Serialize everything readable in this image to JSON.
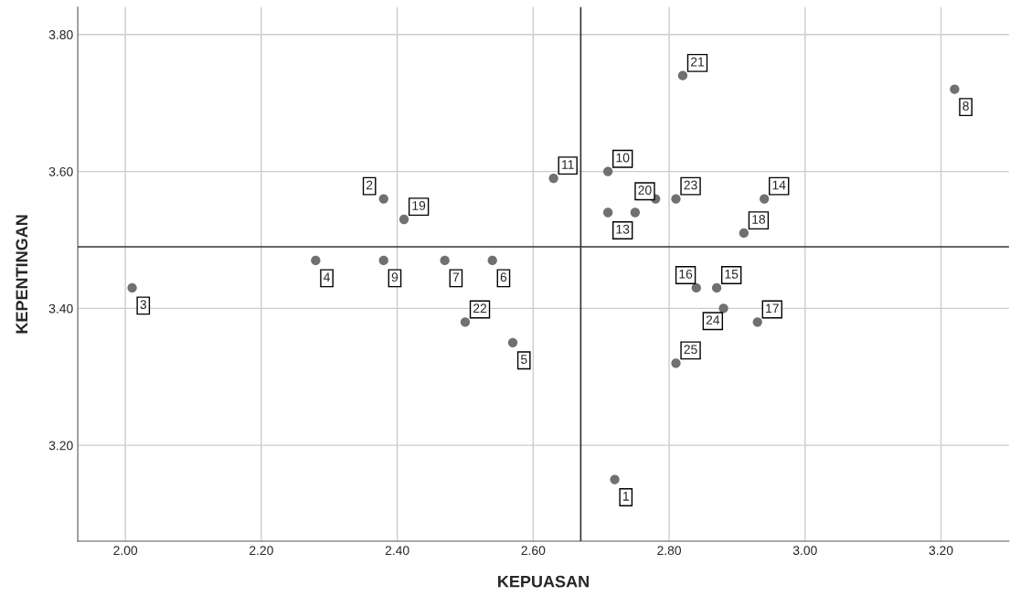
{
  "chart_data": {
    "type": "scatter",
    "xlabel": "KEPUASAN",
    "ylabel": "KEPENTINGAN",
    "xlim": [
      1.93,
      3.3
    ],
    "ylim": [
      3.06,
      3.84
    ],
    "xticks": [
      {
        "value": 2.0,
        "label": "2.00"
      },
      {
        "value": 2.2,
        "label": "2.20"
      },
      {
        "value": 2.4,
        "label": "2.40"
      },
      {
        "value": 2.6,
        "label": "2.60"
      },
      {
        "value": 2.8,
        "label": "2.80"
      },
      {
        "value": 3.0,
        "label": "3.00"
      },
      {
        "value": 3.2,
        "label": "3.20"
      }
    ],
    "yticks": [
      {
        "value": 3.2,
        "label": "3.20"
      },
      {
        "value": 3.4,
        "label": "3.40"
      },
      {
        "value": 3.6,
        "label": "3.60"
      },
      {
        "value": 3.8,
        "label": "3.80"
      }
    ],
    "grid": true,
    "marker": "circle",
    "ref_lines": [
      {
        "axis": "x",
        "value": 2.67,
        "color": "#333333"
      },
      {
        "axis": "y",
        "value": 3.49,
        "color": "#333333"
      }
    ],
    "series": [
      {
        "color": "#707070",
        "x": [
          2.72,
          2.38,
          2.01,
          2.28,
          2.57,
          2.54,
          2.47,
          3.22,
          2.38,
          2.71,
          2.63,
          2.75,
          2.71,
          2.94,
          2.87,
          2.84,
          2.93,
          2.91,
          2.41,
          2.78,
          2.82,
          2.5,
          2.81,
          2.88,
          2.81
        ],
        "values": [
          3.15,
          3.56,
          3.43,
          3.47,
          3.35,
          3.47,
          3.47,
          3.72,
          3.47,
          3.6,
          3.59,
          3.54,
          3.54,
          3.56,
          3.43,
          3.43,
          3.38,
          3.51,
          3.53,
          3.56,
          3.74,
          3.38,
          3.56,
          3.4,
          3.32
        ]
      }
    ],
    "annotations": [
      {
        "text": "1",
        "x": 2.72,
        "y": 3.15
      },
      {
        "text": "2",
        "x": 2.38,
        "y": 3.56
      },
      {
        "text": "3",
        "x": 2.01,
        "y": 3.43
      },
      {
        "text": "4",
        "x": 2.28,
        "y": 3.47
      },
      {
        "text": "5",
        "x": 2.57,
        "y": 3.35
      },
      {
        "text": "6",
        "x": 2.54,
        "y": 3.47
      },
      {
        "text": "7",
        "x": 2.47,
        "y": 3.47
      },
      {
        "text": "8",
        "x": 3.22,
        "y": 3.72
      },
      {
        "text": "9",
        "x": 2.38,
        "y": 3.47
      },
      {
        "text": "10",
        "x": 2.71,
        "y": 3.6
      },
      {
        "text": "11",
        "x": 2.63,
        "y": 3.59
      },
      {
        "text": "13",
        "x": 2.71,
        "y": 3.54
      },
      {
        "text": "14",
        "x": 2.94,
        "y": 3.56
      },
      {
        "text": "15",
        "x": 2.87,
        "y": 3.43
      },
      {
        "text": "16",
        "x": 2.84,
        "y": 3.43
      },
      {
        "text": "17",
        "x": 2.93,
        "y": 3.38
      },
      {
        "text": "18",
        "x": 2.91,
        "y": 3.51
      },
      {
        "text": "19",
        "x": 2.41,
        "y": 3.53
      },
      {
        "text": "20",
        "x": 2.78,
        "y": 3.56
      },
      {
        "text": "21",
        "x": 2.82,
        "y": 3.74
      },
      {
        "text": "22",
        "x": 2.5,
        "y": 3.38
      },
      {
        "text": "23",
        "x": 2.81,
        "y": 3.56
      },
      {
        "text": "24",
        "x": 2.88,
        "y": 3.4
      },
      {
        "text": "25",
        "x": 2.81,
        "y": 3.32
      }
    ]
  }
}
